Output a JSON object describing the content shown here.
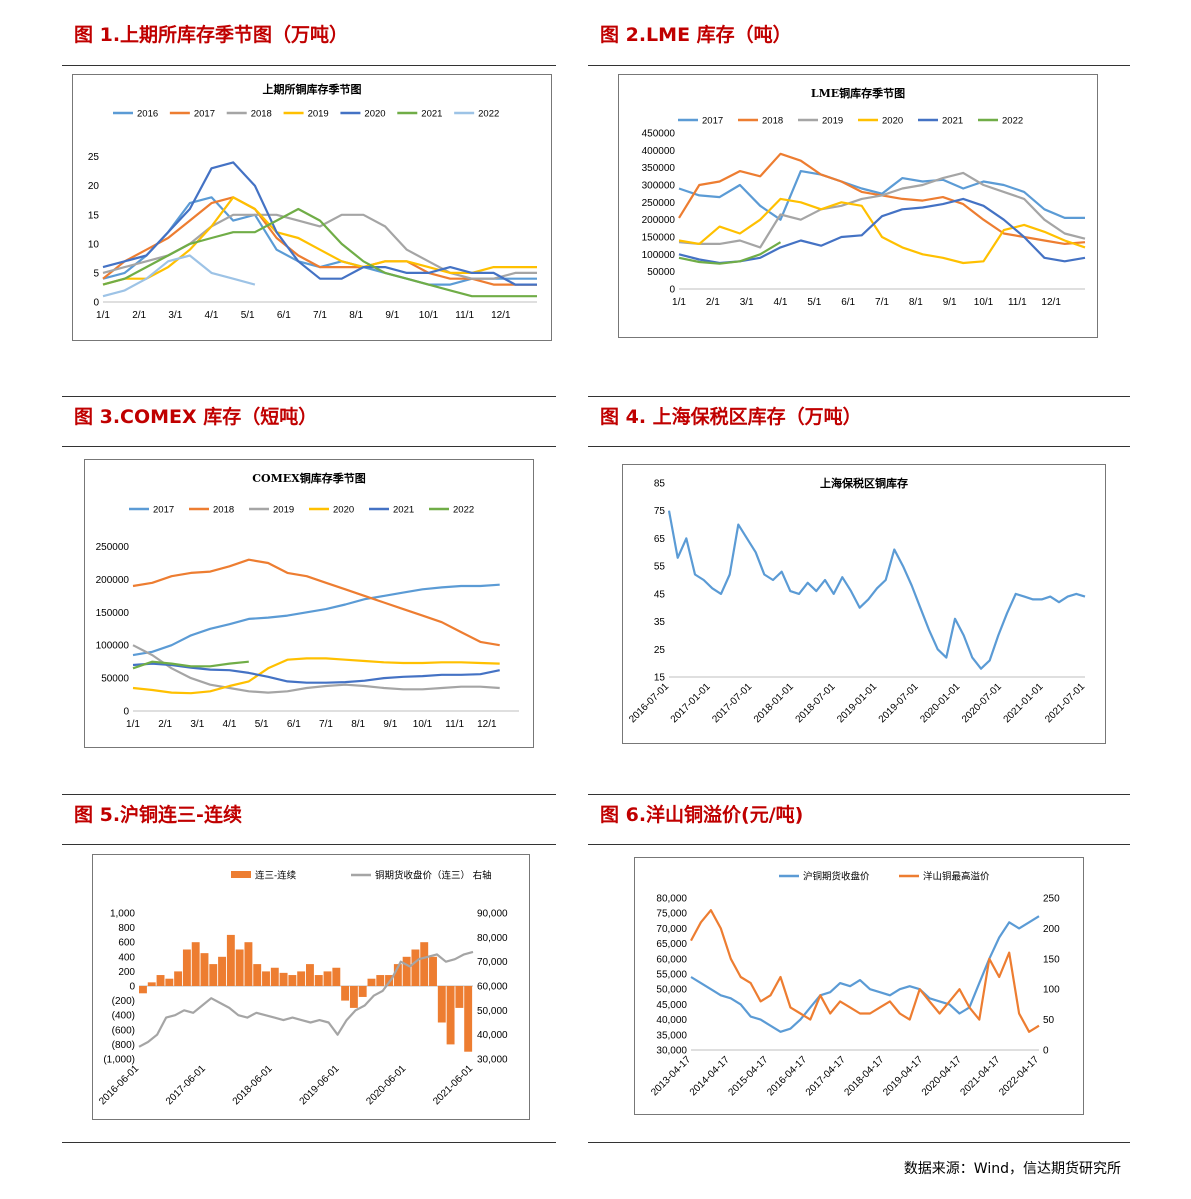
{
  "figures": {
    "f1": {
      "title": "图 1.上期所库存季节图（万吨）"
    },
    "f2": {
      "title": "图 2.LME 库存（吨）"
    },
    "f3": {
      "title": "图 3.COMEX 库存（短吨）"
    },
    "f4": {
      "title": "图 4. 上海保税区库存（万吨）"
    },
    "f5": {
      "title": "图 5.沪铜连三-连续"
    },
    "f6": {
      "title": "图 6.洋山铜溢价(元/吨)"
    }
  },
  "source": "数据来源：Wind，信达期货研究所",
  "colors": {
    "2016": "#5b9bd5",
    "2017": "#ed7d31",
    "2018": "#a5a5a5",
    "2019": "#ffc000",
    "2020": "#4472c4",
    "2021": "#70ad47",
    "2022": "#9dc3e6",
    "orange": "#ed7d31",
    "grey": "#a5a5a5",
    "blue": "#5b9bd5",
    "title_red": "#c00000"
  },
  "chart_data": [
    {
      "id": "c1",
      "type": "line",
      "title": "上期所铜库存季节图",
      "x_ticks": [
        "1/1",
        "2/1",
        "3/1",
        "4/1",
        "5/1",
        "6/1",
        "7/1",
        "8/1",
        "9/1",
        "10/1",
        "11/1",
        "12/1"
      ],
      "y_ticks": [
        "0",
        "5",
        "10",
        "15",
        "20",
        "25"
      ],
      "ylim": [
        0,
        27
      ],
      "series": [
        {
          "name": "2016",
          "color": "#5b9bd5",
          "values": [
            4,
            5,
            8,
            12,
            17,
            18,
            14,
            15,
            9,
            7,
            6,
            7,
            6,
            5,
            4,
            3,
            3,
            4,
            4,
            4,
            4
          ]
        },
        {
          "name": "2017",
          "color": "#ed7d31",
          "values": [
            4,
            7,
            9,
            11,
            14,
            17,
            18,
            16,
            11,
            8,
            6,
            6,
            6,
            7,
            7,
            5,
            4,
            4,
            3,
            3,
            3
          ]
        },
        {
          "name": "2018",
          "color": "#a5a5a5",
          "values": [
            5,
            6,
            7,
            8,
            10,
            13,
            15,
            15,
            15,
            14,
            13,
            15,
            15,
            13,
            9,
            7,
            5,
            4,
            4,
            5,
            5
          ]
        },
        {
          "name": "2019",
          "color": "#ffc000",
          "values": [
            3,
            4,
            4,
            6,
            9,
            13,
            18,
            16,
            12,
            11,
            9,
            7,
            6,
            7,
            7,
            6,
            5,
            5,
            6,
            6,
            6
          ]
        },
        {
          "name": "2020",
          "color": "#4472c4",
          "values": [
            6,
            7,
            8,
            12,
            16,
            23,
            24,
            20,
            12,
            7,
            4,
            4,
            6,
            6,
            5,
            5,
            6,
            5,
            5,
            3,
            3
          ]
        },
        {
          "name": "2021",
          "color": "#70ad47",
          "values": [
            3,
            4,
            6,
            8,
            10,
            11,
            12,
            12,
            14,
            16,
            14,
            10,
            7,
            5,
            4,
            3,
            2,
            1,
            1,
            1,
            1
          ]
        },
        {
          "name": "2022",
          "color": "#9dc3e6",
          "values": [
            1,
            2,
            4,
            7,
            8,
            5,
            4,
            3
          ]
        }
      ]
    },
    {
      "id": "c2",
      "type": "line",
      "title": "LME铜库存季节图",
      "x_ticks": [
        "1/1",
        "2/1",
        "3/1",
        "4/1",
        "5/1",
        "6/1",
        "7/1",
        "8/1",
        "9/1",
        "10/1",
        "11/1",
        "12/1"
      ],
      "y_ticks": [
        "0",
        "50000",
        "100000",
        "150000",
        "200000",
        "250000",
        "300000",
        "350000",
        "400000",
        "450000"
      ],
      "ylim": [
        0,
        450000
      ],
      "series": [
        {
          "name": "2017",
          "color": "#5b9bd5",
          "values": [
            290000,
            270000,
            265000,
            300000,
            240000,
            200000,
            340000,
            330000,
            310000,
            290000,
            275000,
            320000,
            310000,
            315000,
            290000,
            310000,
            300000,
            280000,
            230000,
            205000,
            205000
          ]
        },
        {
          "name": "2018",
          "color": "#ed7d31",
          "values": [
            205000,
            300000,
            310000,
            340000,
            325000,
            390000,
            370000,
            330000,
            310000,
            280000,
            270000,
            260000,
            255000,
            265000,
            245000,
            200000,
            160000,
            150000,
            140000,
            130000,
            135000
          ]
        },
        {
          "name": "2019",
          "color": "#a5a5a5",
          "values": [
            135000,
            130000,
            130000,
            140000,
            120000,
            215000,
            200000,
            230000,
            240000,
            260000,
            270000,
            290000,
            300000,
            320000,
            335000,
            300000,
            280000,
            260000,
            200000,
            160000,
            145000
          ]
        },
        {
          "name": "2020",
          "color": "#ffc000",
          "values": [
            140000,
            130000,
            180000,
            160000,
            200000,
            260000,
            250000,
            230000,
            250000,
            240000,
            150000,
            120000,
            100000,
            90000,
            75000,
            80000,
            170000,
            185000,
            165000,
            140000,
            120000
          ]
        },
        {
          "name": "2021",
          "color": "#4472c4",
          "values": [
            100000,
            85000,
            75000,
            80000,
            90000,
            120000,
            140000,
            125000,
            150000,
            155000,
            210000,
            230000,
            235000,
            245000,
            260000,
            240000,
            200000,
            150000,
            90000,
            80000,
            90000
          ]
        },
        {
          "name": "2022",
          "color": "#70ad47",
          "values": [
            90000,
            78000,
            73000,
            80000,
            100000,
            135000
          ]
        }
      ]
    },
    {
      "id": "c3",
      "type": "line",
      "title": "COMEX铜库存季节图",
      "x_ticks": [
        "1/1",
        "2/1",
        "3/1",
        "4/1",
        "5/1",
        "6/1",
        "7/1",
        "8/1",
        "9/1",
        "10/1",
        "11/1",
        "12/1"
      ],
      "y_ticks": [
        "0",
        "50000",
        "100000",
        "150000",
        "200000",
        "250000"
      ],
      "ylim": [
        0,
        260000
      ],
      "series": [
        {
          "name": "2017",
          "color": "#5b9bd5",
          "values": [
            85000,
            90000,
            100000,
            115000,
            125000,
            132000,
            140000,
            142000,
            145000,
            150000,
            155000,
            162000,
            170000,
            175000,
            180000,
            185000,
            188000,
            190000,
            190000,
            192000
          ]
        },
        {
          "name": "2018",
          "color": "#ed7d31",
          "values": [
            190000,
            195000,
            205000,
            210000,
            212000,
            220000,
            230000,
            225000,
            210000,
            205000,
            195000,
            185000,
            175000,
            165000,
            155000,
            145000,
            135000,
            120000,
            105000,
            100000
          ]
        },
        {
          "name": "2019",
          "color": "#a5a5a5",
          "values": [
            100000,
            85000,
            65000,
            50000,
            40000,
            35000,
            30000,
            28000,
            30000,
            35000,
            38000,
            40000,
            38000,
            35000,
            33000,
            33000,
            35000,
            37000,
            37000,
            35000
          ]
        },
        {
          "name": "2020",
          "color": "#ffc000",
          "values": [
            35000,
            32000,
            28000,
            27000,
            30000,
            38000,
            45000,
            65000,
            78000,
            80000,
            80000,
            78000,
            76000,
            74000,
            73000,
            73000,
            74000,
            74000,
            73000,
            72000
          ]
        },
        {
          "name": "2021",
          "color": "#4472c4",
          "values": [
            70000,
            72000,
            70000,
            66000,
            63000,
            62000,
            58000,
            52000,
            45000,
            43000,
            43000,
            44000,
            46000,
            50000,
            52000,
            53000,
            55000,
            55000,
            56000,
            62000
          ]
        },
        {
          "name": "2022",
          "color": "#70ad47",
          "values": [
            65000,
            75000,
            72000,
            68000,
            68000,
            72000,
            75000
          ]
        }
      ]
    },
    {
      "id": "c4",
      "type": "line",
      "title": "上海保税区铜库存",
      "x_ticks": [
        "2016-07-01",
        "2017-01-01",
        "2017-07-01",
        "2018-01-01",
        "2018-07-01",
        "2019-01-01",
        "2019-07-01",
        "2020-01-01",
        "2020-07-01",
        "2021-01-01",
        "2021-07-01"
      ],
      "y_ticks": [
        "15",
        "25",
        "35",
        "45",
        "55",
        "65",
        "75",
        "85"
      ],
      "ylim": [
        15,
        85
      ],
      "series": [
        {
          "name": "上海保税区铜库存",
          "color": "#5b9bd5",
          "values": [
            75,
            58,
            65,
            52,
            50,
            47,
            45,
            52,
            70,
            65,
            60,
            52,
            50,
            53,
            46,
            45,
            49,
            46,
            50,
            45,
            51,
            46,
            40,
            43,
            47,
            50,
            61,
            55,
            48,
            40,
            32,
            25,
            22,
            36,
            30,
            22,
            18,
            21,
            30,
            38,
            45,
            44,
            43,
            43,
            44,
            42,
            44,
            45,
            44
          ]
        }
      ]
    },
    {
      "id": "c5",
      "type": "bar+line",
      "title": "",
      "legend": [
        "连三-连续",
        "铜期货收盘价（连三） 右轴"
      ],
      "x_ticks": [
        "2016-06-01",
        "2017-06-01",
        "2018-06-01",
        "2019-06-01",
        "2020-06-01",
        "2021-06-01"
      ],
      "y_left_ticks": [
        "1,000",
        "800",
        "600",
        "400",
        "200",
        "0",
        "(200)",
        "(400)",
        "(600)",
        "(800)",
        "(1,000)"
      ],
      "y_right_ticks": [
        "90,000",
        "80,000",
        "70,000",
        "60,000",
        "50,000",
        "40,000",
        "30,000"
      ],
      "ylim_left": [
        -1000,
        1000
      ],
      "ylim_right": [
        30000,
        90000
      ],
      "series": [
        {
          "name": "连三-连续",
          "color": "#ed7d31",
          "values": [
            -100,
            50,
            150,
            100,
            200,
            500,
            600,
            450,
            300,
            400,
            700,
            500,
            600,
            300,
            200,
            250,
            180,
            150,
            200,
            300,
            150,
            200,
            250,
            -200,
            -300,
            -150,
            100,
            150,
            150,
            300,
            400,
            500,
            600,
            400,
            -500,
            -800,
            -300,
            -900
          ]
        },
        {
          "name": "铜期货收盘价（连三） 右轴",
          "color": "#a5a5a5",
          "values": [
            35000,
            37000,
            40000,
            47000,
            48000,
            50000,
            49000,
            52000,
            55000,
            53000,
            51000,
            48000,
            47000,
            49000,
            48000,
            47000,
            46000,
            47000,
            46000,
            45000,
            46000,
            45000,
            40000,
            46000,
            50000,
            52000,
            56000,
            58000,
            63000,
            70000,
            68000,
            71000,
            72000,
            73000,
            70000,
            71000,
            73000,
            74000
          ]
        }
      ]
    },
    {
      "id": "c6",
      "type": "line",
      "title": "",
      "legend": [
        "沪铜期货收盘价",
        "洋山铜最高溢价"
      ],
      "x_ticks": [
        "2013-04-17",
        "2014-04-17",
        "2015-04-17",
        "2016-04-17",
        "2017-04-17",
        "2018-04-17",
        "2019-04-17",
        "2020-04-17",
        "2021-04-17",
        "2022-04-17"
      ],
      "y_left_ticks": [
        "80,000",
        "75,000",
        "70,000",
        "65,000",
        "60,000",
        "55,000",
        "50,000",
        "45,000",
        "40,000",
        "35,000",
        "30,000"
      ],
      "y_right_ticks": [
        "250",
        "200",
        "150",
        "100",
        "50",
        "0"
      ],
      "ylim_left": [
        30000,
        80000
      ],
      "ylim_right": [
        0,
        250
      ],
      "series": [
        {
          "name": "沪铜期货收盘价",
          "color": "#5b9bd5",
          "values": [
            54000,
            52000,
            50000,
            48000,
            47000,
            45000,
            41000,
            40000,
            38000,
            36000,
            37000,
            40000,
            44000,
            48000,
            49000,
            52000,
            51000,
            53000,
            50000,
            49000,
            48000,
            50000,
            51000,
            50000,
            47000,
            46000,
            45000,
            42000,
            44000,
            52000,
            60000,
            67000,
            72000,
            70000,
            72000,
            74000
          ]
        },
        {
          "name": "洋山铜最高溢价",
          "color": "#ed7d31",
          "values": [
            180,
            210,
            230,
            200,
            150,
            120,
            110,
            80,
            90,
            120,
            70,
            60,
            50,
            90,
            60,
            80,
            70,
            60,
            60,
            70,
            80,
            60,
            50,
            100,
            80,
            60,
            80,
            100,
            70,
            50,
            150,
            120,
            160,
            60,
            30,
            40
          ]
        }
      ]
    }
  ]
}
